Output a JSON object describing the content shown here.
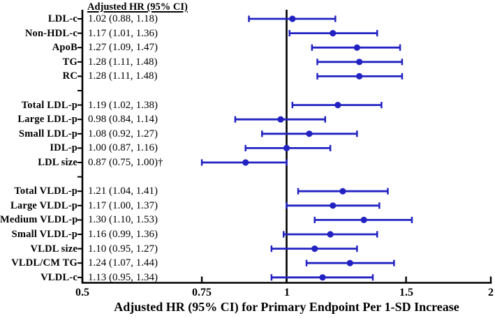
{
  "chart_data": {
    "type": "forest",
    "column_header": "Adjusted HR (95% CI)",
    "xlabel": "Adjusted HR (95% CI) for Primary Endpoint Per 1-SD Increase",
    "x_scale": "log",
    "xlim": [
      0.5,
      2
    ],
    "reference_line": 1,
    "x_ticks": [
      {
        "value": 0.5,
        "label": "0.5"
      },
      {
        "value": 0.75,
        "label": "0.75"
      },
      {
        "value": 1,
        "label": "1"
      },
      {
        "value": 1.5,
        "label": "1.5"
      },
      {
        "value": 2,
        "label": "2"
      }
    ],
    "marker_color": "#2222c3",
    "axis_color": "#000000",
    "groups": [
      {
        "rows": [
          {
            "label": "LDL-c",
            "text": "1.02 (0.88, 1.18)",
            "hr": 1.02,
            "lo": 0.88,
            "hi": 1.18
          },
          {
            "label": "Non-HDL-c",
            "text": "1.17 (1.01, 1.36)",
            "hr": 1.17,
            "lo": 1.01,
            "hi": 1.36
          },
          {
            "label": "ApoB",
            "text": "1.27 (1.09, 1.47)",
            "hr": 1.27,
            "lo": 1.09,
            "hi": 1.47
          },
          {
            "label": "TG",
            "text": "1.28 (1.11, 1.48)",
            "hr": 1.28,
            "lo": 1.11,
            "hi": 1.48
          },
          {
            "label": "RC",
            "text": "1.28 (1.11, 1.48)",
            "hr": 1.28,
            "lo": 1.11,
            "hi": 1.48
          }
        ]
      },
      {
        "rows": [
          {
            "label": "Total LDL-p",
            "text": "1.19 (1.02, 1.38)",
            "hr": 1.19,
            "lo": 1.02,
            "hi": 1.38
          },
          {
            "label": "Large LDL-p",
            "text": "0.98 (0.84, 1.14)",
            "hr": 0.98,
            "lo": 0.84,
            "hi": 1.14
          },
          {
            "label": "Small LDL-p",
            "text": "1.08 (0.92, 1.27)",
            "hr": 1.08,
            "lo": 0.92,
            "hi": 1.27
          },
          {
            "label": "IDL-p",
            "text": "1.00 (0.87, 1.16)",
            "hr": 1.0,
            "lo": 0.87,
            "hi": 1.16
          },
          {
            "label": "LDL size",
            "text": "0.87 (0.75, 1.00)†",
            "hr": 0.87,
            "lo": 0.75,
            "hi": 1.0
          }
        ]
      },
      {
        "rows": [
          {
            "label": "Total VLDL-p",
            "text": "1.21 (1.04, 1.41)",
            "hr": 1.21,
            "lo": 1.04,
            "hi": 1.41
          },
          {
            "label": "Large VLDL-p",
            "text": "1.17 (1.00, 1.37)",
            "hr": 1.17,
            "lo": 1.0,
            "hi": 1.37
          },
          {
            "label": "Medium VLDL-p",
            "text": "1.30 (1.10, 1.53)",
            "hr": 1.3,
            "lo": 1.1,
            "hi": 1.53
          },
          {
            "label": "Small VLDL-p",
            "text": "1.16 (0.99, 1.36)",
            "hr": 1.16,
            "lo": 0.99,
            "hi": 1.36
          },
          {
            "label": "VLDL size",
            "text": "1.10 (0.95, 1.27)",
            "hr": 1.1,
            "lo": 0.95,
            "hi": 1.27
          },
          {
            "label": "VLDL/CM TG",
            "text": "1.24 (1.07, 1.44)",
            "hr": 1.24,
            "lo": 1.07,
            "hi": 1.44
          },
          {
            "label": "VLDL-c",
            "text": "1.13 (0.95, 1.34)",
            "hr": 1.13,
            "lo": 0.95,
            "hi": 1.34
          }
        ]
      }
    ]
  }
}
